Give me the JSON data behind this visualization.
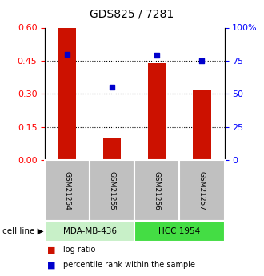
{
  "title": "GDS825 / 7281",
  "samples": [
    "GSM21254",
    "GSM21255",
    "GSM21256",
    "GSM21257"
  ],
  "log_ratio": [
    0.6,
    0.1,
    0.44,
    0.32
  ],
  "percentile_rank": [
    80,
    55,
    79,
    75
  ],
  "cell_lines": [
    {
      "label": "MDA-MB-436",
      "samples": [
        0,
        1
      ],
      "color": "#c8f0c8"
    },
    {
      "label": "HCC 1954",
      "samples": [
        2,
        3
      ],
      "color": "#44dd44"
    }
  ],
  "bar_color": "#cc1100",
  "dot_color": "#0000cc",
  "left_ylim": [
    0,
    0.6
  ],
  "right_ylim": [
    0,
    100
  ],
  "left_yticks": [
    0,
    0.15,
    0.3,
    0.45,
    0.6
  ],
  "right_yticks": [
    0,
    25,
    50,
    75,
    100
  ],
  "right_yticklabels": [
    "0",
    "25",
    "50",
    "75",
    "100%"
  ],
  "hlines": [
    0.15,
    0.3,
    0.45
  ],
  "title_fontsize": 10,
  "bar_width": 0.4,
  "sample_box_color": "#c0c0c0",
  "cell_line_label": "cell line",
  "figsize": [
    3.3,
    3.45
  ],
  "dpi": 100
}
